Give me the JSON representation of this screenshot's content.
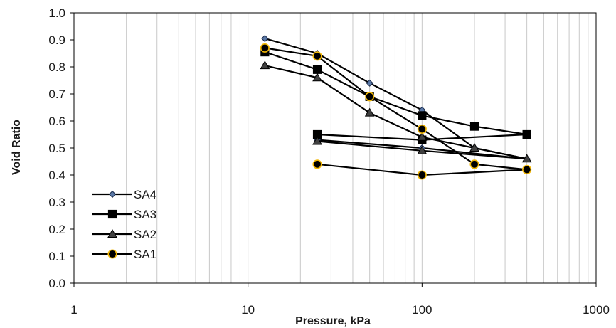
{
  "chart_data": {
    "type": "scatter",
    "xscale": "log",
    "xlim": [
      1,
      1000
    ],
    "ylim": [
      0,
      1
    ],
    "grid": "vertical log minor + major",
    "xlabel": "Pressure, kPa",
    "ylabel": "Void Ratio",
    "xtick_labels": [
      "1",
      "10",
      "100",
      "1000"
    ],
    "ytick_labels": [
      "0.0",
      "0.1",
      "0.2",
      "0.3",
      "0.4",
      "0.5",
      "0.6",
      "0.7",
      "0.8",
      "0.9",
      "1.0"
    ],
    "legend_position": "lower-left",
    "series": [
      {
        "name": "SA4",
        "marker": "diamond",
        "marker_color": "#5a78a6",
        "x": [
          12.5,
          25,
          50,
          100,
          200,
          400,
          100,
          25
        ],
        "y": [
          0.905,
          0.85,
          0.74,
          0.64,
          0.5,
          0.46,
          0.5,
          0.53
        ]
      },
      {
        "name": "SA3",
        "marker": "square",
        "marker_color": "#000000",
        "x": [
          12.5,
          25,
          50,
          100,
          200,
          400,
          100,
          25
        ],
        "y": [
          0.855,
          0.79,
          0.69,
          0.62,
          0.58,
          0.55,
          0.53,
          0.55
        ]
      },
      {
        "name": "SA2",
        "marker": "triangle",
        "marker_color": "#404040",
        "x": [
          12.5,
          25,
          50,
          100,
          200,
          400,
          100,
          25
        ],
        "y": [
          0.805,
          0.76,
          0.63,
          0.54,
          0.5,
          0.46,
          0.49,
          0.525
        ]
      },
      {
        "name": "SA1",
        "marker": "circle",
        "marker_color": "#000000",
        "marker_edge": "#f2b705",
        "x": [
          12.5,
          25,
          50,
          100,
          200,
          400,
          100,
          25
        ],
        "y": [
          0.87,
          0.84,
          0.69,
          0.57,
          0.44,
          0.42,
          0.4,
          0.44
        ]
      }
    ]
  }
}
